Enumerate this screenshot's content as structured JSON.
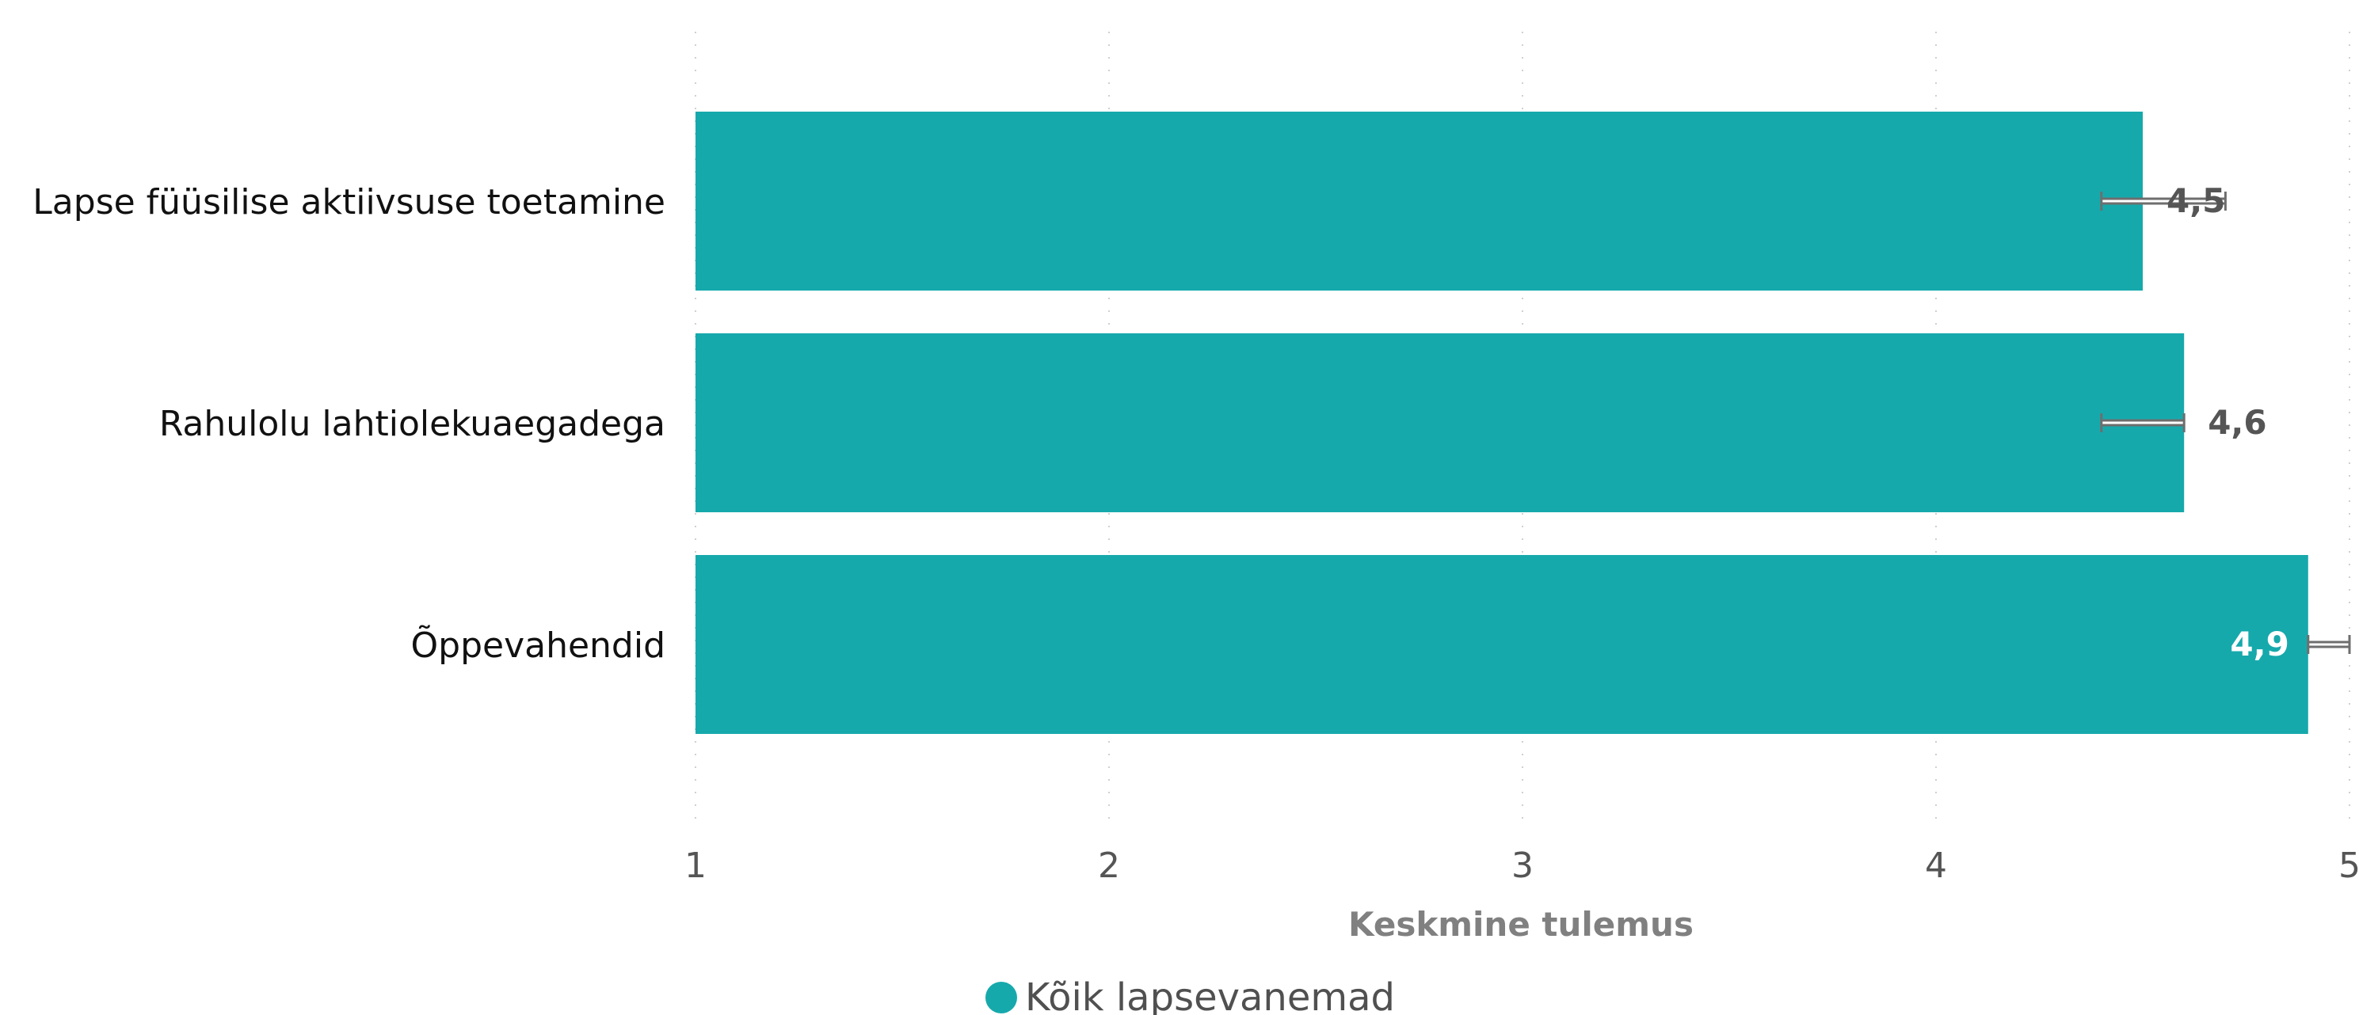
{
  "chart_data": {
    "type": "bar",
    "orientation": "horizontal",
    "categories": [
      "Lapse füüsilise aktiivsuse toetamine",
      "Rahulolu lahtiolekuaegadega",
      "Õppevahendid"
    ],
    "series": [
      {
        "name": "Kõik lapsevanemad",
        "values": [
          4.5,
          4.6,
          4.9
        ],
        "labels": [
          "4,5",
          "4,6",
          "4,9"
        ],
        "error_low": [
          4.4,
          4.4,
          4.9
        ],
        "error_high": [
          4.7,
          4.6,
          5.0
        ],
        "color": "#16a9ac"
      }
    ],
    "xlabel": "Keskmine tulemus",
    "xlim": [
      1,
      5
    ],
    "xticks": [
      "1",
      "2",
      "3",
      "4",
      "5"
    ],
    "grid": "vertical-dotted",
    "legend_position": "bottom-center"
  },
  "colors": {
    "bar": "#16a9ac",
    "error_bar": "#6e6e6e",
    "label_outside": "#555555",
    "label_inside": "#ffffff"
  }
}
